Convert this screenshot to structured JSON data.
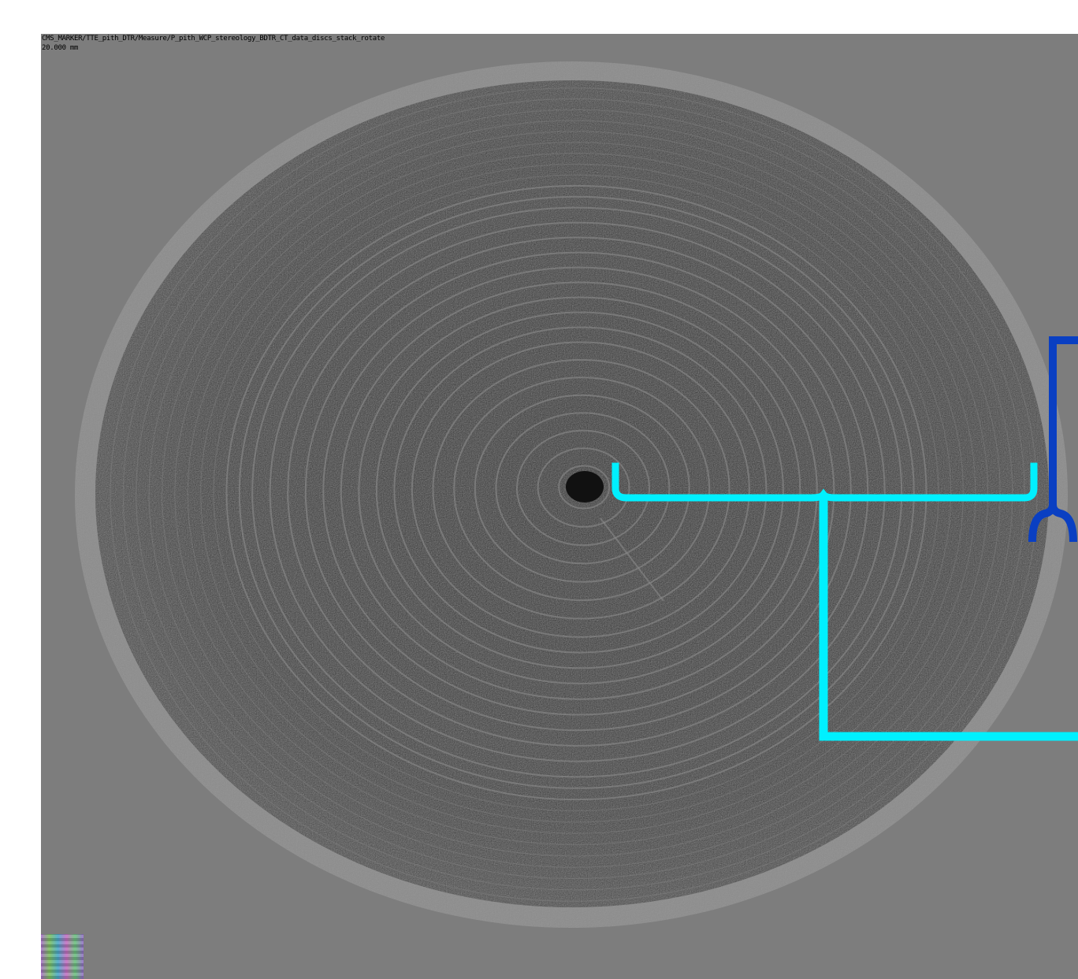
{
  "viewer": {
    "file_path": "CMS_MARKER/TTE_pith_DTR/Measure/P_pith_WCP_stereology_BDTR_CT_data_discs_stack_rotate",
    "scale_text": "20.000 mm"
  },
  "colors": {
    "background": "#7d7d7d",
    "disc_dark": "#3a3a3a",
    "ring_light": "#9a9a9a",
    "bracket_cyan": "#00f0ff",
    "bracket_blue": "#0a3fc2"
  }
}
